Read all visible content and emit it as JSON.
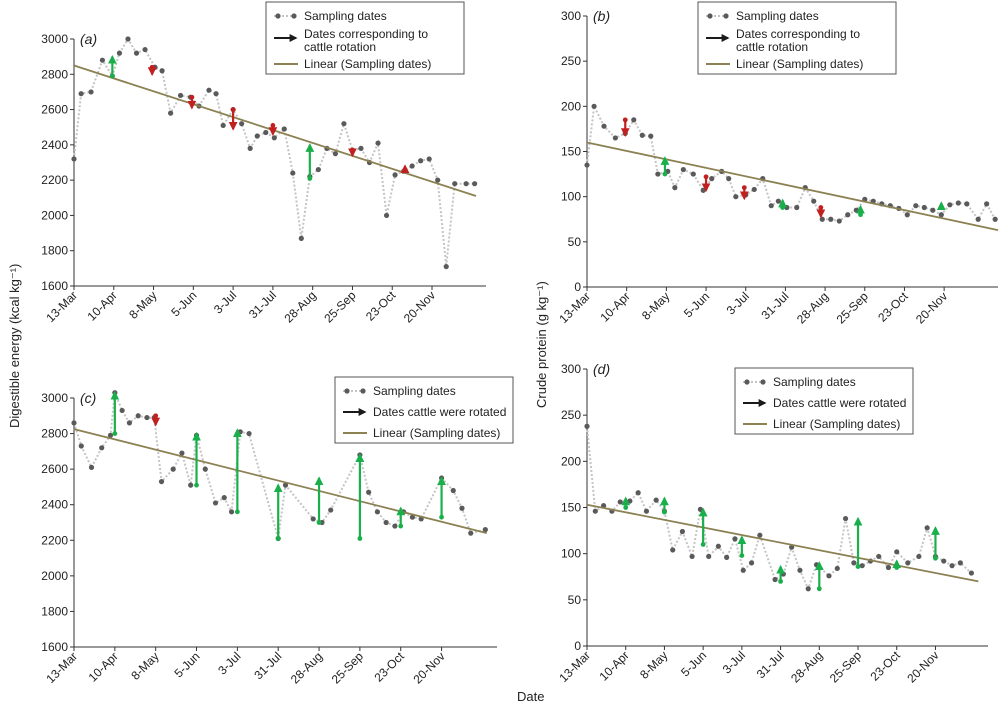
{
  "figure": {
    "xlabel": "Date",
    "ylabel_left": "Digestible energy (kcal kg⁻¹)",
    "ylabel_right": "Crude protein (g kg⁻¹)"
  },
  "colors": {
    "sampling_dots": "#5a5a5a",
    "sampling_line": "#c4c4c4",
    "linear": "#8b8152",
    "rotation_green": "#19b04b",
    "rotation_red": "#c21f1f",
    "legend_arrow": "#1a1a1a"
  },
  "chart_data": [
    {
      "panel": "(a)",
      "type": "line",
      "ylabel": "Digestible energy (kcal kg⁻¹)",
      "ylim": [
        1600,
        3000
      ],
      "yticks": [
        1600,
        1800,
        2000,
        2200,
        2400,
        2600,
        2800,
        3000
      ],
      "xlim": [
        0,
        290
      ],
      "xtick_labels": [
        "13-Mar",
        "10-Apr",
        "8-May",
        "5-Jun",
        "3-Jul",
        "31-Jul",
        "28-Aug",
        "25-Sep",
        "23-Oct",
        "20-Nov"
      ],
      "xtick_days": [
        0,
        28,
        56,
        84,
        112,
        140,
        168,
        196,
        224,
        252
      ],
      "legend": [
        "Sampling dates",
        "Dates corresponding to cattle rotation",
        "Linear (Sampling dates)"
      ],
      "legend_position": "top-right",
      "series": [
        {
          "name": "Sampling dates",
          "x": [
            0,
            5,
            12,
            20,
            27,
            32,
            38,
            44,
            50,
            57,
            62,
            68,
            75,
            82,
            88,
            95,
            100,
            105,
            112,
            118,
            124,
            129,
            135,
            141,
            148,
            154,
            160,
            166,
            172,
            178,
            184,
            190,
            196,
            202,
            208,
            214,
            220,
            226,
            232,
            238,
            244,
            250,
            256,
            262,
            268,
            276,
            282
          ],
          "y": [
            2320,
            2690,
            2700,
            2880,
            2790,
            2920,
            3000,
            2920,
            2940,
            2840,
            2820,
            2580,
            2680,
            2670,
            2620,
            2710,
            2690,
            2510,
            2600,
            2520,
            2380,
            2450,
            2470,
            2440,
            2490,
            2240,
            1870,
            2220,
            2260,
            2380,
            2350,
            2520,
            2370,
            2380,
            2300,
            2410,
            2000,
            2230,
            2250,
            2280,
            2310,
            2320,
            2200,
            1710,
            2180,
            2180,
            2180
          ]
        }
      ],
      "trend": {
        "name": "Linear (Sampling dates)",
        "start": [
          0,
          2850
        ],
        "end": [
          283,
          2110
        ]
      },
      "rotation_arrows": [
        {
          "x": 27,
          "from": 2790,
          "to": 2900,
          "color": "green"
        },
        {
          "x": 55,
          "from": 2840,
          "to": 2800,
          "color": "red"
        },
        {
          "x": 83,
          "from": 2670,
          "to": 2610,
          "color": "red"
        },
        {
          "x": 112,
          "from": 2600,
          "to": 2490,
          "color": "red"
        },
        {
          "x": 140,
          "from": 2510,
          "to": 2460,
          "color": "red"
        },
        {
          "x": 166,
          "from": 2210,
          "to": 2400,
          "color": "green"
        },
        {
          "x": 196,
          "from": 2370,
          "to": 2340,
          "color": "red"
        },
        {
          "x": 233,
          "from": 2260,
          "to": 2280,
          "color": "red"
        }
      ]
    },
    {
      "panel": "(b)",
      "type": "line",
      "ylabel": "Crude protein (g kg⁻¹)",
      "ylim": [
        0,
        300
      ],
      "yticks": [
        0,
        50,
        100,
        150,
        200,
        250,
        300
      ],
      "xlim": [
        0,
        290
      ],
      "xtick_labels": [
        "13-Mar",
        "10-Apr",
        "8-May",
        "5-Jun",
        "3-Jul",
        "31-Jul",
        "28-Aug",
        "25-Sep",
        "23-Oct",
        "20-Nov"
      ],
      "xtick_days": [
        0,
        28,
        56,
        84,
        112,
        140,
        168,
        196,
        224,
        252
      ],
      "legend": [
        "Sampling dates",
        "Dates corresponding to cattle rotation",
        "Linear (Sampling dates)"
      ],
      "legend_position": "top-right",
      "series": [
        {
          "name": "Sampling dates",
          "x": [
            0,
            5,
            12,
            20,
            27,
            33,
            39,
            45,
            50,
            57,
            62,
            68,
            75,
            82,
            88,
            95,
            100,
            105,
            112,
            118,
            124,
            130,
            135,
            141,
            148,
            154,
            160,
            166,
            172,
            178,
            184,
            190,
            196,
            202,
            208,
            214,
            220,
            226,
            232,
            238,
            244,
            250,
            256,
            262,
            268,
            276,
            282,
            288
          ],
          "y": [
            135,
            200,
            178,
            165,
            170,
            185,
            168,
            167,
            125,
            128,
            110,
            130,
            125,
            107,
            120,
            128,
            120,
            100,
            102,
            108,
            120,
            90,
            95,
            88,
            88,
            110,
            95,
            75,
            75,
            73,
            80,
            85,
            97,
            95,
            92,
            90,
            87,
            80,
            90,
            88,
            85,
            80,
            91,
            93,
            92,
            75,
            92,
            75
          ]
        }
      ],
      "trend": {
        "name": "Linear (Sampling dates)",
        "start": [
          0,
          160
        ],
        "end": [
          290,
          63
        ]
      },
      "rotation_arrows": [
        {
          "x": 27,
          "from": 185,
          "to": 168,
          "color": "red"
        },
        {
          "x": 55,
          "from": 125,
          "to": 143,
          "color": "green"
        },
        {
          "x": 84,
          "from": 122,
          "to": 107,
          "color": "red"
        },
        {
          "x": 111,
          "from": 110,
          "to": 98,
          "color": "red"
        },
        {
          "x": 138,
          "from": 88,
          "to": 96,
          "color": "green"
        },
        {
          "x": 165,
          "from": 88,
          "to": 78,
          "color": "red"
        },
        {
          "x": 193,
          "from": 80,
          "to": 89,
          "color": "green"
        },
        {
          "x": 250,
          "from": 89,
          "to": 93,
          "color": "green"
        }
      ]
    },
    {
      "panel": "(c)",
      "type": "line",
      "ylabel": "Digestible energy (kcal kg⁻¹)",
      "ylim": [
        1600,
        3000
      ],
      "yticks": [
        1600,
        1800,
        2000,
        2200,
        2400,
        2600,
        2800,
        3000
      ],
      "xlim": [
        0,
        290
      ],
      "xtick_labels": [
        "13-Mar",
        "10-Apr",
        "8-May",
        "5-Jun",
        "3-Jul",
        "31-Jul",
        "28-Aug",
        "25-Sep",
        "23-Oct",
        "20-Nov"
      ],
      "xtick_days": [
        0,
        28,
        56,
        84,
        112,
        140,
        168,
        196,
        224,
        252
      ],
      "legend": [
        "Sampling dates",
        "Dates cattle were rotated",
        "Linear (Sampling dates)"
      ],
      "legend_position": "top-right",
      "series": [
        {
          "name": "Sampling dates",
          "x": [
            0,
            5,
            12,
            19,
            25,
            28,
            33,
            38,
            44,
            50,
            55,
            60,
            68,
            74,
            80,
            84,
            90,
            97,
            103,
            108,
            114,
            120,
            140,
            145,
            164,
            170,
            176,
            196,
            202,
            208,
            214,
            220,
            226,
            232,
            238,
            252,
            260,
            266,
            272,
            282
          ],
          "y": [
            2860,
            2730,
            2610,
            2720,
            2790,
            3030,
            2930,
            2860,
            2900,
            2890,
            2890,
            2530,
            2600,
            2690,
            2510,
            2790,
            2600,
            2410,
            2440,
            2360,
            2810,
            2800,
            2210,
            2510,
            2320,
            2300,
            2370,
            2680,
            2470,
            2360,
            2300,
            2280,
            2360,
            2330,
            2320,
            2550,
            2480,
            2380,
            2240,
            2260
          ]
        }
      ],
      "trend": {
        "name": "Linear (Sampling dates)",
        "start": [
          0,
          2825
        ],
        "end": [
          283,
          2240
        ]
      },
      "rotation_arrows": [
        {
          "x": 28,
          "from": 2800,
          "to": 3030,
          "color": "green"
        },
        {
          "x": 56,
          "from": 2900,
          "to": 2850,
          "color": "red"
        },
        {
          "x": 84,
          "from": 2510,
          "to": 2800,
          "color": "green"
        },
        {
          "x": 112,
          "from": 2360,
          "to": 2820,
          "color": "green"
        },
        {
          "x": 140,
          "from": 2210,
          "to": 2510,
          "color": "green"
        },
        {
          "x": 168,
          "from": 2300,
          "to": 2550,
          "color": "green"
        },
        {
          "x": 196,
          "from": 2210,
          "to": 2680,
          "color": "green"
        },
        {
          "x": 224,
          "from": 2280,
          "to": 2380,
          "color": "green"
        },
        {
          "x": 252,
          "from": 2330,
          "to": 2550,
          "color": "green"
        }
      ]
    },
    {
      "panel": "(d)",
      "type": "line",
      "ylabel": "Crude protein (g kg⁻¹)",
      "ylim": [
        0,
        300
      ],
      "yticks": [
        0,
        50,
        100,
        150,
        200,
        250,
        300
      ],
      "xlim": [
        0,
        290
      ],
      "xtick_labels": [
        "13-Mar",
        "10-Apr",
        "8-May",
        "5-Jun",
        "3-Jul",
        "31-Jul",
        "28-Aug",
        "25-Sep",
        "23-Oct",
        "20-Nov"
      ],
      "xtick_days": [
        0,
        28,
        56,
        84,
        112,
        140,
        168,
        196,
        224,
        252
      ],
      "legend": [
        "Sampling dates",
        "Dates cattle were rotated",
        "Linear (Sampling dates)"
      ],
      "legend_position": "top-right",
      "series": [
        {
          "name": "Sampling dates",
          "x": [
            0,
            6,
            12,
            18,
            24,
            31,
            37,
            43,
            50,
            56,
            62,
            69,
            76,
            82,
            88,
            95,
            101,
            107,
            113,
            119,
            125,
            136,
            142,
            148,
            154,
            160,
            166,
            175,
            181,
            187,
            193,
            199,
            205,
            211,
            218,
            224,
            232,
            240,
            246,
            252,
            258,
            264,
            270,
            278
          ],
          "y": [
            238,
            146,
            152,
            146,
            156,
            157,
            166,
            146,
            158,
            146,
            104,
            124,
            97,
            148,
            97,
            108,
            96,
            116,
            82,
            90,
            120,
            72,
            78,
            107,
            82,
            62,
            88,
            76,
            84,
            138,
            90,
            87,
            92,
            97,
            85,
            102,
            90,
            97,
            128,
            97,
            92,
            87,
            90,
            79
          ]
        }
      ],
      "trend": {
        "name": "Linear (Sampling dates)",
        "start": [
          0,
          153
        ],
        "end": [
          283,
          70
        ]
      },
      "rotation_arrows": [
        {
          "x": 28,
          "from": 150,
          "to": 160,
          "color": "green"
        },
        {
          "x": 56,
          "from": 145,
          "to": 160,
          "color": "green"
        },
        {
          "x": 84,
          "from": 110,
          "to": 148,
          "color": "green"
        },
        {
          "x": 112,
          "from": 98,
          "to": 118,
          "color": "green"
        },
        {
          "x": 140,
          "from": 70,
          "to": 86,
          "color": "green"
        },
        {
          "x": 168,
          "from": 62,
          "to": 90,
          "color": "green"
        },
        {
          "x": 196,
          "from": 86,
          "to": 138,
          "color": "green"
        },
        {
          "x": 224,
          "from": 85,
          "to": 92,
          "color": "green"
        },
        {
          "x": 252,
          "from": 95,
          "to": 128,
          "color": "green"
        }
      ]
    }
  ]
}
